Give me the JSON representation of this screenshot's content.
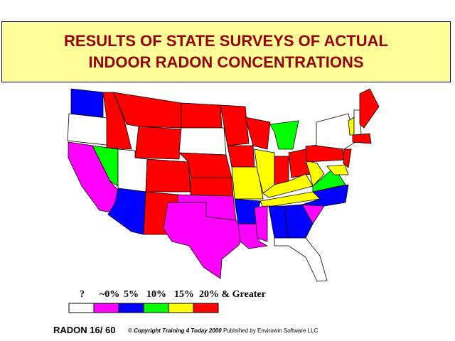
{
  "header": {
    "title_lines": [
      "RESULTS OF STATE SURVEYS OF ACTUAL",
      "INDOOR RADON CONCENTRATIONS"
    ]
  },
  "legend": {
    "items": [
      {
        "label": "?",
        "color": "#ffffff"
      },
      {
        "label": "~0%",
        "color": "#ff00ff"
      },
      {
        "label": "5%",
        "color": "#0000ff"
      },
      {
        "label": "10%",
        "color": "#00ff00"
      },
      {
        "label": "15%",
        "color": "#ffff00"
      },
      {
        "label": "20% & Greater",
        "color": "#ff0000"
      }
    ]
  },
  "footer": {
    "slide": "RADON 16/ 60",
    "copyright": "© Copyright Training 4 Today 2000",
    "publisher": "Publsihed by Envirowin Software LLC"
  }
}
